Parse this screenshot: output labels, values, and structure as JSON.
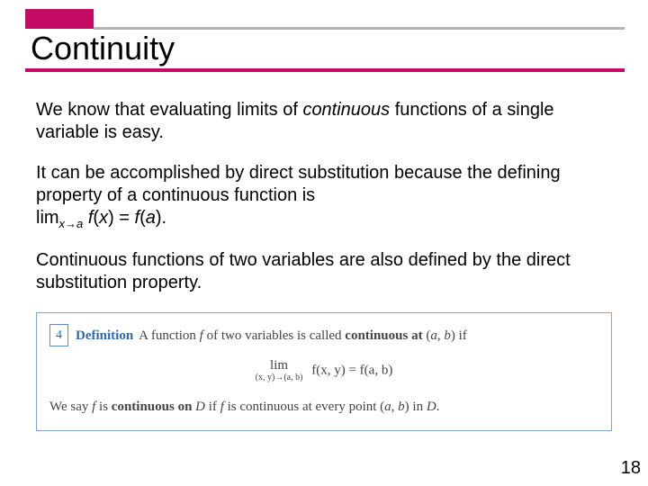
{
  "colors": {
    "accent": "#c60b67",
    "header_line": "#b4b4b4",
    "box_border": "#7fa8d6",
    "def_blue": "#2d6cb5",
    "text": "#000000",
    "def_text": "#444444",
    "background": "#ffffff"
  },
  "typography": {
    "title_fontsize": 36,
    "body_fontsize": 20,
    "def_fontsize": 15,
    "page_num_fontsize": 20
  },
  "header": {
    "title": "Continuity"
  },
  "body": {
    "p1a": "We know that evaluating limits of ",
    "p1b": "continuous",
    "p1c": " functions of a single variable is easy.",
    "p2a": "It can be accomplished by direct substitution because the defining property of a continuous function is",
    "p2b_lim": "lim",
    "p2b_sub": "x→a",
    "p2b_fx": " f",
    "p2b_x": "(x) = ",
    "p2b_fa": "f",
    "p2b_a": "(a).",
    "p3": "Continuous functions of two variables are also defined by the direct substitution property."
  },
  "definition": {
    "number": "4",
    "label": "Definition",
    "line1a": "A function ",
    "line1_f": "f",
    "line1b": " of two variables is called ",
    "line1_bold": "continuous at",
    "line1c": " (",
    "line1_a": "a",
    "line1d": ", ",
    "line1_b": "b",
    "line1e": ") if",
    "lim_top": "lim",
    "lim_bot": "(x, y)→(a, b)",
    "lim_rhs_f1": "f",
    "lim_rhs_xy": "(x, y) = ",
    "lim_rhs_f2": "f",
    "lim_rhs_ab": "(a, b)",
    "line2a": "We say ",
    "line2_f": "f",
    "line2b": " is ",
    "line2_bold": "continuous on",
    "line2c": " ",
    "line2_D": "D",
    "line2d": " if ",
    "line2_f2": "f",
    "line2e": " is continuous at every point (",
    "line2_a": "a",
    "line2f": ", ",
    "line2_b2": "b",
    "line2g": ") in ",
    "line2_D2": "D",
    "line2h": "."
  },
  "page_number": "18"
}
